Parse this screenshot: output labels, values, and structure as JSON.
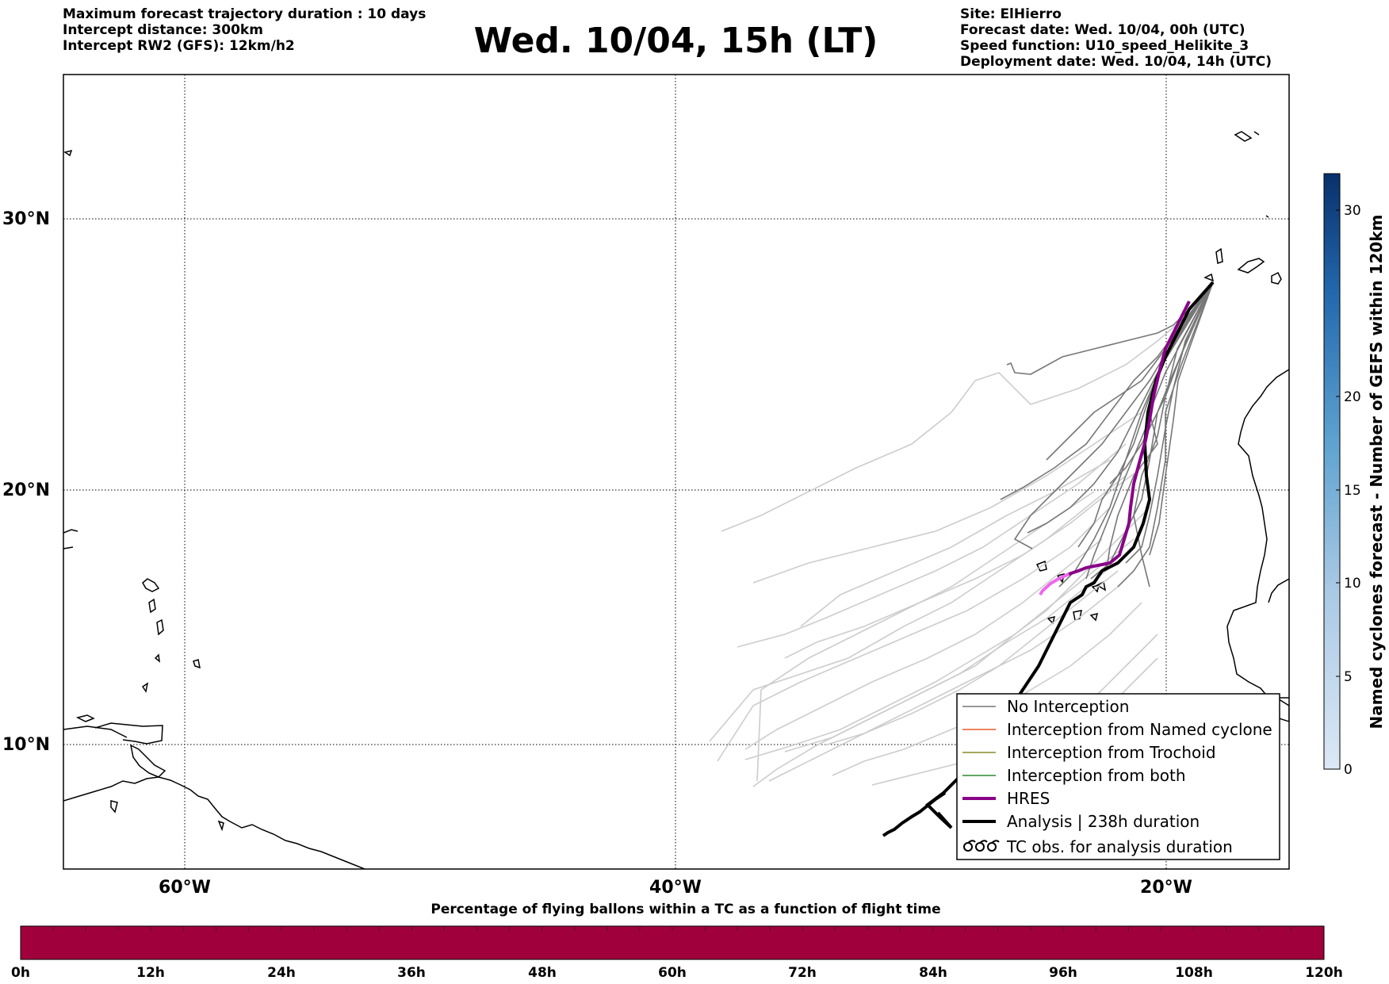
{
  "header": {
    "left": [
      "Maximum forecast trajectory duration : 10 days",
      "Intercept distance: 300km",
      "Intercept RW2 (GFS):  12km/h2"
    ],
    "title": "Wed. 10/04, 15h (LT)",
    "right": [
      "Site: ElHierro",
      "Forecast date: Wed. 10/04, 00h (UTC)",
      "Speed function: U10_speed_Helikite_3",
      "Deployment date: Wed. 10/04, 14h (UTC)"
    ]
  },
  "map": {
    "lat_labels": [
      "30°N",
      "20°N",
      "10°N"
    ],
    "lon_labels": [
      "60°W",
      "40°W",
      "20°W"
    ],
    "legend": [
      {
        "label": "No Interception",
        "color": "#777777"
      },
      {
        "label": "Interception from Named cyclone",
        "color": "#e8582a"
      },
      {
        "label": "Interception from Trochoid",
        "color": "#8a8a2a"
      },
      {
        "label": "Interception from both",
        "color": "#2f8a2f"
      },
      {
        "label": "HRES",
        "color": "#880088"
      },
      {
        "label": "Analysis | 238h duration",
        "color": "#000000"
      },
      {
        "label": "TC obs. for analysis duration",
        "icon": "tc-symbol-icon"
      }
    ],
    "colors": {
      "no_interception": "#777777",
      "faded_tracks": "#cccccc",
      "hres": "#880088",
      "hres_tail": "#ee66ee",
      "analysis": "#000000",
      "coast": "#000000"
    }
  },
  "cyclone_colorbar": {
    "label": "Named cyclones forecast - Number of GEFS within 120km",
    "ticks": [
      "0",
      "5",
      "10",
      "15",
      "20",
      "30"
    ],
    "color_range": [
      "#dce8f5",
      "#08306b"
    ]
  },
  "time_bar": {
    "title": "Percentage of flying ballons within a TC as a function of flight time",
    "ticks": [
      "0h",
      "12h",
      "24h",
      "36h",
      "48h",
      "60h",
      "72h",
      "84h",
      "96h",
      "108h",
      "120h"
    ],
    "fill_color": "#a0003c"
  }
}
